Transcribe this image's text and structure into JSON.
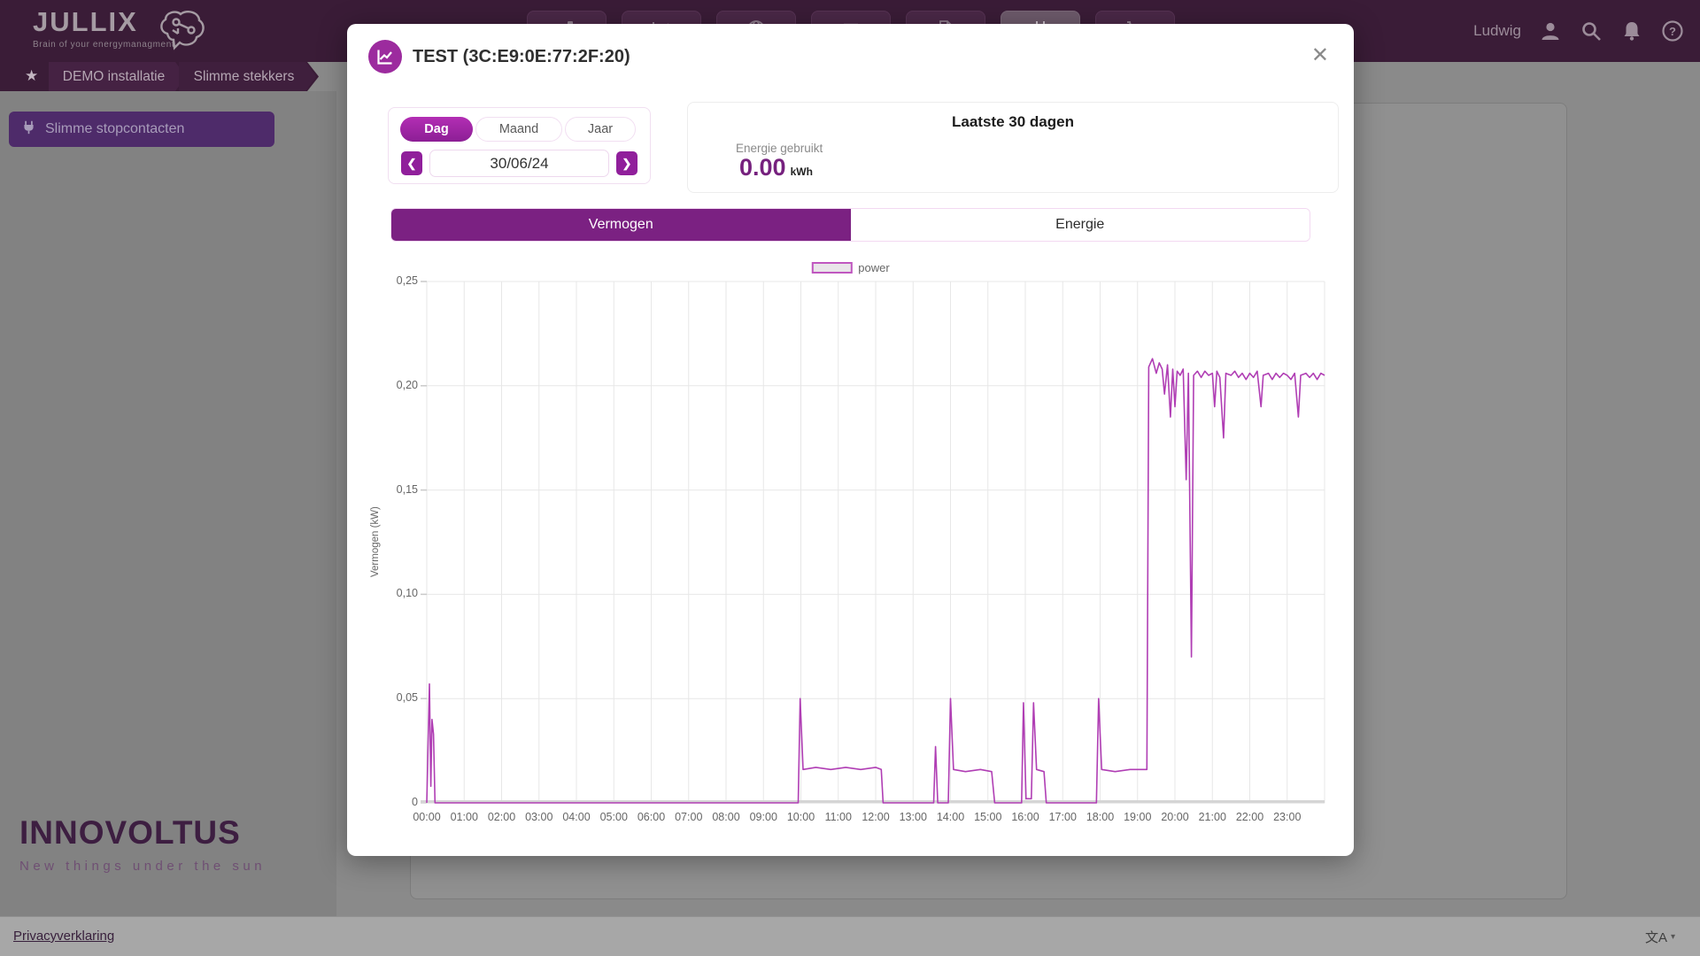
{
  "header": {
    "logo_title": "JULLIX",
    "logo_tagline": "Brain of your energymanagment",
    "user_name": "Ludwig",
    "nav_items": [
      {
        "icon": "dashboard-icon",
        "active": false
      },
      {
        "icon": "chart-icon",
        "active": false
      },
      {
        "icon": "globe-icon",
        "active": false
      },
      {
        "icon": "list-icon",
        "active": false
      },
      {
        "icon": "document-icon",
        "active": false
      },
      {
        "icon": "plug-icon",
        "active": true
      },
      {
        "icon": "cart-icon",
        "active": false
      }
    ],
    "right_icons": [
      "user-icon",
      "search-icon",
      "bell-icon",
      "help-icon"
    ]
  },
  "breadcrumb": {
    "items": [
      "DEMO installatie",
      "Slimme stekkers"
    ]
  },
  "sidebar": {
    "button_label": "Slimme stopcontacten"
  },
  "branding": {
    "name": "INNOVOLTUS",
    "tagline": "New things under the sun"
  },
  "footer": {
    "privacy_link": "Privacyverklaring",
    "language_glyph": "文A",
    "language_caret": "▾"
  },
  "modal": {
    "title": "TEST (3C:E9:0E:77:2F:20)",
    "close_glyph": "✕",
    "period_tabs": [
      "Dag",
      "Maand",
      "Jaar"
    ],
    "active_period": "Dag",
    "date_value": "30/06/24",
    "prev_glyph": "❮",
    "next_glyph": "❯",
    "stats": {
      "title": "Laatste 30 dagen",
      "energy_label": "Energie gebruikt",
      "energy_value": "0.00",
      "energy_unit": "kWh"
    },
    "view_tabs": [
      "Vermogen",
      "Energie"
    ],
    "active_view": "Vermogen"
  },
  "chart_data": {
    "type": "line",
    "title": "",
    "xlabel": "",
    "ylabel": "Vermogen (kW)",
    "legend": [
      "power"
    ],
    "legend_position": "top-center",
    "grid": true,
    "xlim": [
      0,
      24
    ],
    "ylim": [
      0,
      0.25
    ],
    "x_ticks": [
      {
        "v": 0,
        "label": "00:00"
      },
      {
        "v": 1,
        "label": "01:00"
      },
      {
        "v": 2,
        "label": "02:00"
      },
      {
        "v": 3,
        "label": "03:00"
      },
      {
        "v": 4,
        "label": "04:00"
      },
      {
        "v": 5,
        "label": "05:00"
      },
      {
        "v": 6,
        "label": "06:00"
      },
      {
        "v": 7,
        "label": "07:00"
      },
      {
        "v": 8,
        "label": "08:00"
      },
      {
        "v": 9,
        "label": "09:00"
      },
      {
        "v": 10,
        "label": "10:00"
      },
      {
        "v": 11,
        "label": "11:00"
      },
      {
        "v": 12,
        "label": "12:00"
      },
      {
        "v": 13,
        "label": "13:00"
      },
      {
        "v": 14,
        "label": "14:00"
      },
      {
        "v": 15,
        "label": "15:00"
      },
      {
        "v": 16,
        "label": "16:00"
      },
      {
        "v": 17,
        "label": "17:00"
      },
      {
        "v": 18,
        "label": "18:00"
      },
      {
        "v": 19,
        "label": "19:00"
      },
      {
        "v": 20,
        "label": "20:00"
      },
      {
        "v": 21,
        "label": "21:00"
      },
      {
        "v": 22,
        "label": "22:00"
      },
      {
        "v": 23,
        "label": "23:00"
      }
    ],
    "y_ticks": [
      {
        "v": 0,
        "label": "0"
      },
      {
        "v": 0.05,
        "label": "0,05"
      },
      {
        "v": 0.1,
        "label": "0,10"
      },
      {
        "v": 0.15,
        "label": "0,15"
      },
      {
        "v": 0.2,
        "label": "0,20"
      },
      {
        "v": 0.25,
        "label": "0,25"
      }
    ],
    "line_color": "#b03eb4",
    "series": [
      {
        "name": "power",
        "unit": "kW",
        "points": [
          [
            0.0,
            0.0
          ],
          [
            0.07,
            0.057
          ],
          [
            0.11,
            0.008
          ],
          [
            0.14,
            0.04
          ],
          [
            0.18,
            0.033
          ],
          [
            0.22,
            0.0
          ],
          [
            9.93,
            0.0
          ],
          [
            9.98,
            0.05
          ],
          [
            10.06,
            0.016
          ],
          [
            10.4,
            0.017
          ],
          [
            10.8,
            0.016
          ],
          [
            11.2,
            0.017
          ],
          [
            11.6,
            0.016
          ],
          [
            12.0,
            0.017
          ],
          [
            12.15,
            0.016
          ],
          [
            12.2,
            0.0
          ],
          [
            13.55,
            0.0
          ],
          [
            13.6,
            0.027
          ],
          [
            13.66,
            0.0
          ],
          [
            13.94,
            0.0
          ],
          [
            14.0,
            0.05
          ],
          [
            14.08,
            0.016
          ],
          [
            14.4,
            0.015
          ],
          [
            14.8,
            0.016
          ],
          [
            15.1,
            0.015
          ],
          [
            15.18,
            0.0
          ],
          [
            15.9,
            0.0
          ],
          [
            15.95,
            0.048
          ],
          [
            16.02,
            0.002
          ],
          [
            16.16,
            0.002
          ],
          [
            16.22,
            0.048
          ],
          [
            16.3,
            0.016
          ],
          [
            16.5,
            0.015
          ],
          [
            16.56,
            0.0
          ],
          [
            17.9,
            0.0
          ],
          [
            17.96,
            0.05
          ],
          [
            18.04,
            0.016
          ],
          [
            18.4,
            0.015
          ],
          [
            18.8,
            0.016
          ],
          [
            19.25,
            0.016
          ],
          [
            19.3,
            0.209
          ],
          [
            19.4,
            0.213
          ],
          [
            19.5,
            0.206
          ],
          [
            19.58,
            0.211
          ],
          [
            19.66,
            0.208
          ],
          [
            19.72,
            0.196
          ],
          [
            19.8,
            0.21
          ],
          [
            19.88,
            0.185
          ],
          [
            19.94,
            0.208
          ],
          [
            20.0,
            0.19
          ],
          [
            20.06,
            0.207
          ],
          [
            20.14,
            0.205
          ],
          [
            20.22,
            0.208
          ],
          [
            20.3,
            0.155
          ],
          [
            20.36,
            0.206
          ],
          [
            20.44,
            0.07
          ],
          [
            20.5,
            0.205
          ],
          [
            20.6,
            0.207
          ],
          [
            20.7,
            0.204
          ],
          [
            20.8,
            0.207
          ],
          [
            20.9,
            0.205
          ],
          [
            21.0,
            0.206
          ],
          [
            21.06,
            0.19
          ],
          [
            21.12,
            0.207
          ],
          [
            21.2,
            0.204
          ],
          [
            21.3,
            0.175
          ],
          [
            21.36,
            0.206
          ],
          [
            21.5,
            0.205
          ],
          [
            21.6,
            0.207
          ],
          [
            21.7,
            0.204
          ],
          [
            21.8,
            0.206
          ],
          [
            21.9,
            0.203
          ],
          [
            22.0,
            0.206
          ],
          [
            22.1,
            0.204
          ],
          [
            22.2,
            0.207
          ],
          [
            22.3,
            0.19
          ],
          [
            22.36,
            0.205
          ],
          [
            22.5,
            0.206
          ],
          [
            22.6,
            0.203
          ],
          [
            22.7,
            0.206
          ],
          [
            22.8,
            0.204
          ],
          [
            22.9,
            0.206
          ],
          [
            23.0,
            0.205
          ],
          [
            23.1,
            0.203
          ],
          [
            23.2,
            0.206
          ],
          [
            23.3,
            0.185
          ],
          [
            23.36,
            0.205
          ],
          [
            23.5,
            0.206
          ],
          [
            23.6,
            0.204
          ],
          [
            23.7,
            0.206
          ],
          [
            23.8,
            0.203
          ],
          [
            23.9,
            0.206
          ],
          [
            24.0,
            0.205
          ]
        ]
      }
    ]
  }
}
